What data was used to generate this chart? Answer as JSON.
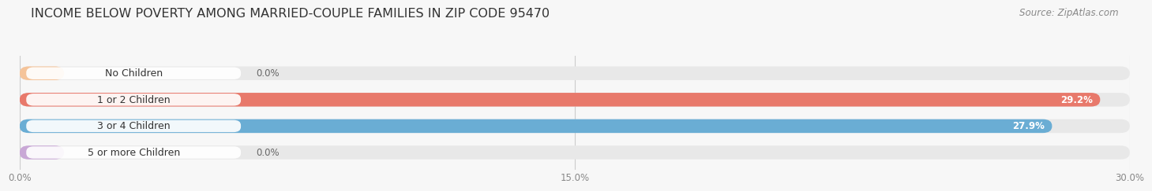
{
  "title": "INCOME BELOW POVERTY AMONG MARRIED-COUPLE FAMILIES IN ZIP CODE 95470",
  "source": "Source: ZipAtlas.com",
  "categories": [
    "No Children",
    "1 or 2 Children",
    "3 or 4 Children",
    "5 or more Children"
  ],
  "values": [
    0.0,
    29.2,
    27.9,
    0.0
  ],
  "bar_colors": [
    "#f5c49a",
    "#e8796b",
    "#6aadd4",
    "#c9a8d6"
  ],
  "track_color": "#e8e8e8",
  "xlim": [
    0,
    30.0
  ],
  "xticks": [
    0.0,
    15.0,
    30.0
  ],
  "xtick_labels": [
    "0.0%",
    "15.0%",
    "30.0%"
  ],
  "background_color": "#f7f7f7",
  "title_fontsize": 11.5,
  "bar_height": 0.52,
  "source_fontsize": 8.5
}
